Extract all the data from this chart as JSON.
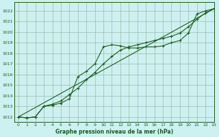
{
  "title": "Graphe pression niveau de la mer (hPa)",
  "bg_color": "#cdf0f0",
  "line_color": "#1a5c1a",
  "grid_color": "#99bbaa",
  "xlim": [
    -0.5,
    23
  ],
  "ylim": [
    1011.5,
    1022.8
  ],
  "yticks": [
    1012,
    1013,
    1014,
    1015,
    1016,
    1017,
    1018,
    1019,
    1020,
    1021,
    1022
  ],
  "xticks": [
    0,
    1,
    2,
    3,
    4,
    5,
    6,
    7,
    8,
    9,
    10,
    11,
    12,
    13,
    14,
    15,
    16,
    17,
    18,
    19,
    20,
    21,
    22,
    23
  ],
  "series1_x": [
    0,
    1,
    2,
    3,
    4,
    5,
    6,
    7,
    8,
    9,
    10,
    11,
    12,
    13,
    14,
    15,
    16,
    17,
    18,
    19,
    20,
    21,
    22,
    23
  ],
  "series1_y": [
    1012.0,
    1011.9,
    1012.0,
    1013.0,
    1013.1,
    1013.3,
    1013.7,
    1015.8,
    1016.3,
    1017.0,
    1018.6,
    1018.8,
    1018.7,
    1018.5,
    1018.5,
    1018.6,
    1018.6,
    1018.7,
    1019.0,
    1019.2,
    1019.9,
    1021.7,
    1022.0,
    1022.2
  ],
  "series2_x": [
    0,
    1,
    2,
    3,
    4,
    5,
    6,
    7,
    8,
    9,
    10,
    11,
    12,
    13,
    14,
    15,
    16,
    17,
    18,
    19,
    20,
    21,
    22,
    23
  ],
  "series2_y": [
    1012.0,
    1011.9,
    1012.0,
    1013.0,
    1013.2,
    1013.5,
    1014.1,
    1014.7,
    1015.5,
    1016.2,
    1017.0,
    1017.7,
    1018.3,
    1018.6,
    1018.8,
    1019.0,
    1019.2,
    1019.4,
    1019.6,
    1019.9,
    1020.5,
    1021.2,
    1021.8,
    1022.2
  ],
  "series3_x": [
    0,
    23
  ],
  "series3_y": [
    1012.0,
    1022.2
  ]
}
